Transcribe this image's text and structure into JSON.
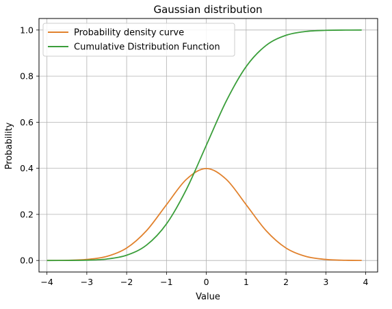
{
  "chart_data": {
    "type": "line",
    "title": "Gaussian distribution",
    "xlabel": "Value",
    "ylabel": "Probability",
    "xlim": [
      -4.2,
      4.3
    ],
    "ylim": [
      -0.05,
      1.05
    ],
    "grid": true,
    "legend_position": "top-left",
    "x_ticks": [
      -4,
      -3,
      -2,
      -1,
      0,
      1,
      2,
      3,
      4
    ],
    "y_ticks": [
      0.0,
      0.2,
      0.4,
      0.6,
      0.8,
      1.0
    ],
    "x_tick_labels": [
      "−4",
      "−3",
      "−2",
      "−1",
      "0",
      "1",
      "2",
      "3",
      "4"
    ],
    "y_tick_labels": [
      "0.0",
      "0.2",
      "0.4",
      "0.6",
      "0.8",
      "1.0"
    ],
    "series": [
      {
        "name": "Probability density curve",
        "color": "#e1812c",
        "x": [
          -4.0,
          -3.5,
          -3.0,
          -2.5,
          -2.0,
          -1.5,
          -1.0,
          -0.5,
          0.0,
          0.5,
          1.0,
          1.5,
          2.0,
          2.5,
          3.0,
          3.5,
          3.9
        ],
        "y": [
          0.0001,
          0.0009,
          0.0044,
          0.0175,
          0.054,
          0.1295,
          0.242,
          0.3521,
          0.3989,
          0.3521,
          0.242,
          0.1295,
          0.054,
          0.0175,
          0.0044,
          0.0009,
          0.0002
        ]
      },
      {
        "name": "Cumulative Distribution Function",
        "color": "#3a9e3a",
        "x": [
          -4.0,
          -3.5,
          -3.0,
          -2.5,
          -2.0,
          -1.5,
          -1.0,
          -0.5,
          0.0,
          0.5,
          1.0,
          1.5,
          2.0,
          2.5,
          3.0,
          3.5,
          3.9
        ],
        "y": [
          0.0,
          0.0002,
          0.0013,
          0.0062,
          0.0228,
          0.0668,
          0.1587,
          0.3085,
          0.5,
          0.6915,
          0.8413,
          0.9332,
          0.9772,
          0.9938,
          0.9987,
          0.9998,
          1.0
        ]
      }
    ]
  }
}
